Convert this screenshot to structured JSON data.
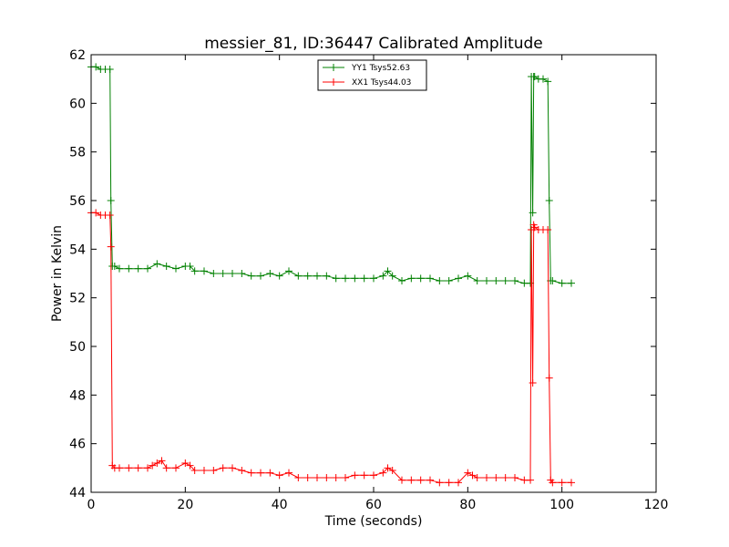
{
  "chart_data": {
    "type": "line",
    "title": "messier_81, ID:36447 Calibrated Amplitude",
    "xlabel": "Time (seconds)",
    "ylabel": "Power in Kelvin",
    "xlim": [
      0,
      120
    ],
    "ylim": [
      44,
      62
    ],
    "xticks": [
      "0",
      "20",
      "40",
      "60",
      "80",
      "100",
      "120"
    ],
    "yticks": [
      "44",
      "46",
      "48",
      "50",
      "52",
      "54",
      "56",
      "58",
      "60",
      "62"
    ],
    "legend_position": "top-center",
    "grid": false,
    "series": [
      {
        "name": "YY1 Tsys52.63",
        "color": "#008000",
        "marker": "plus",
        "x": [
          0,
          1,
          2,
          3,
          4,
          4.2,
          4.5,
          5,
          6,
          8,
          10,
          12,
          14,
          16,
          18,
          20,
          21,
          22,
          24,
          26,
          28,
          30,
          32,
          34,
          36,
          38,
          40,
          42,
          44,
          46,
          48,
          50,
          52,
          54,
          56,
          58,
          60,
          62,
          63,
          64,
          66,
          68,
          70,
          72,
          74,
          76,
          78,
          80,
          82,
          84,
          86,
          88,
          90,
          92,
          93.3,
          93.5,
          93.8,
          94,
          94.2,
          95,
          96,
          97,
          97.3,
          97.6,
          98,
          100,
          102
        ],
        "y": [
          61.5,
          61.5,
          61.4,
          61.4,
          61.4,
          56.0,
          53.3,
          53.3,
          53.2,
          53.2,
          53.2,
          53.2,
          53.4,
          53.3,
          53.2,
          53.3,
          53.3,
          53.1,
          53.1,
          53.0,
          53.0,
          53.0,
          53.0,
          52.9,
          52.9,
          53.0,
          52.9,
          53.1,
          52.9,
          52.9,
          52.9,
          52.9,
          52.8,
          52.8,
          52.8,
          52.8,
          52.8,
          52.9,
          53.1,
          52.9,
          52.7,
          52.8,
          52.8,
          52.8,
          52.7,
          52.7,
          52.8,
          52.9,
          52.7,
          52.7,
          52.7,
          52.7,
          52.7,
          52.6,
          52.6,
          61.1,
          55.5,
          61.1,
          61.1,
          61.0,
          61.0,
          60.9,
          56.0,
          52.7,
          52.7,
          52.6,
          52.6
        ]
      },
      {
        "name": "XX1 Tsys44.03",
        "color": "#ff0000",
        "marker": "plus",
        "x": [
          0,
          1,
          2,
          3,
          4,
          4.2,
          4.5,
          5,
          6,
          8,
          10,
          12,
          13,
          14,
          15,
          16,
          18,
          20,
          21,
          22,
          24,
          26,
          28,
          30,
          32,
          34,
          36,
          38,
          40,
          42,
          44,
          46,
          48,
          50,
          52,
          54,
          56,
          58,
          60,
          62,
          63,
          64,
          66,
          68,
          70,
          72,
          74,
          76,
          78,
          80,
          81,
          82,
          84,
          86,
          88,
          90,
          92,
          93.3,
          93.5,
          93.8,
          94,
          94.2,
          95,
          96,
          97,
          97.3,
          97.6,
          98,
          100,
          102
        ],
        "y": [
          55.5,
          55.5,
          55.4,
          55.4,
          55.4,
          54.1,
          45.1,
          45.0,
          45.0,
          45.0,
          45.0,
          45.0,
          45.1,
          45.2,
          45.3,
          45.0,
          45.0,
          45.2,
          45.1,
          44.9,
          44.9,
          44.9,
          45.0,
          45.0,
          44.9,
          44.8,
          44.8,
          44.8,
          44.7,
          44.8,
          44.6,
          44.6,
          44.6,
          44.6,
          44.6,
          44.6,
          44.7,
          44.7,
          44.7,
          44.8,
          45.0,
          44.9,
          44.5,
          44.5,
          44.5,
          44.5,
          44.4,
          44.4,
          44.4,
          44.8,
          44.7,
          44.6,
          44.6,
          44.6,
          44.6,
          44.6,
          44.5,
          44.5,
          54.8,
          48.5,
          55.0,
          54.9,
          54.8,
          54.8,
          54.8,
          48.7,
          44.5,
          44.4,
          44.4,
          44.4
        ]
      }
    ]
  }
}
